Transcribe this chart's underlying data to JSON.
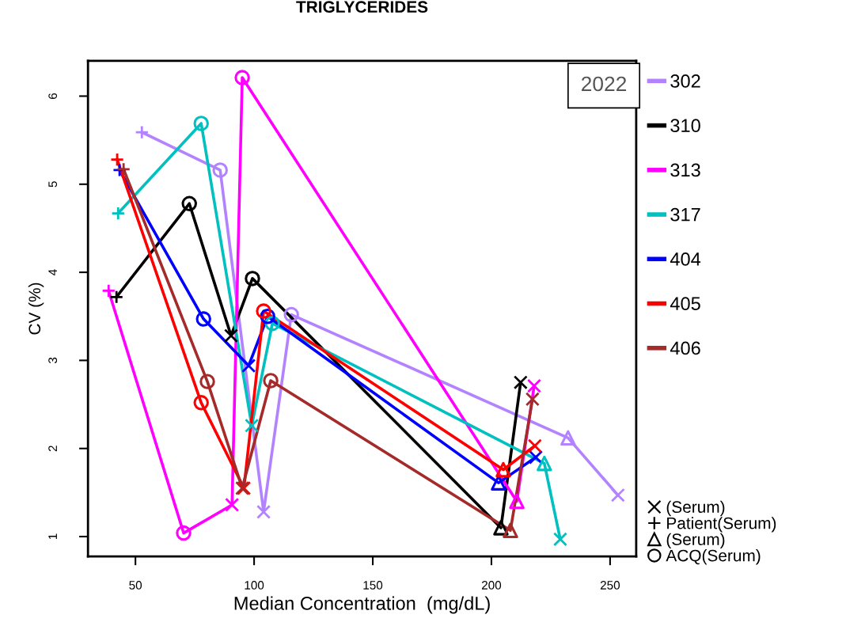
{
  "chart_data": {
    "type": "line",
    "title": "TRIGLYCERIDES",
    "xlabel": "Median Concentration  (mg/dL)",
    "ylabel": "CV (%)",
    "xlim": [
      30,
      261
    ],
    "xticks": [
      50,
      100,
      150,
      200,
      250
    ],
    "ylim": [
      0.775,
      6.4
    ],
    "yticks": [
      1,
      2,
      3,
      4,
      5,
      6
    ],
    "grid": false,
    "legend": "right",
    "marker": "none",
    "line_style": "solid",
    "annotations": [
      "2022"
    ],
    "series": [
      {
        "name": "302",
        "color": "#b383ff",
        "x": [
          52.7,
          85.7,
          104,
          115.7,
          232.3,
          253.3
        ],
        "values": [
          5.59,
          5.16,
          1.28,
          3.52,
          2.12,
          1.47
        ]
      },
      {
        "name": "310",
        "color": "#000000",
        "x": [
          42,
          72.7,
          90.3,
          99.3,
          204,
          212.3
        ],
        "values": [
          3.72,
          4.78,
          3.28,
          3.93,
          1.1,
          2.75
        ]
      },
      {
        "name": "313",
        "color": "#ff00ff",
        "x": [
          38.7,
          70.3,
          90.7,
          95,
          210.7,
          218
        ],
        "values": [
          3.79,
          1.04,
          1.36,
          6.21,
          1.4,
          2.71
        ]
      },
      {
        "name": "317",
        "color": "#00c0c0",
        "x": [
          42.7,
          77.7,
          99,
          107.7,
          222.3,
          229
        ],
        "values": [
          4.67,
          5.69,
          2.26,
          3.42,
          1.83,
          0.97
        ]
      },
      {
        "name": "404",
        "color": "#0000ff",
        "x": [
          43.3,
          78.7,
          97.7,
          105.7,
          203,
          218.7
        ],
        "values": [
          5.16,
          3.47,
          2.94,
          3.5,
          1.61,
          1.9
        ]
      },
      {
        "name": "405",
        "color": "#ff0000",
        "x": [
          42.3,
          77.7,
          95.7,
          104,
          205,
          218.3
        ],
        "values": [
          5.28,
          2.52,
          1.55,
          3.56,
          1.76,
          2.03
        ]
      },
      {
        "name": "406",
        "color": "#a52a2a",
        "x": [
          45,
          80.3,
          95,
          107,
          208,
          217.3
        ],
        "values": [
          5.17,
          2.76,
          1.55,
          2.77,
          1.07,
          2.56
        ]
      },
      {
        "name": "(Serum)",
        "type": "scatter",
        "marker": "x",
        "color": "#000000",
        "x": [
          104,
          253.3,
          90.3,
          212.3,
          90.7,
          218,
          99,
          229,
          97.7,
          218.7,
          95.7,
          218.3,
          95,
          217.3
        ],
        "values": [
          1.28,
          1.47,
          3.28,
          2.75,
          1.36,
          2.71,
          2.26,
          0.97,
          2.94,
          1.9,
          1.55,
          2.03,
          1.55,
          2.56
        ],
        "colors": [
          "#b383ff",
          "#b383ff",
          "#000000",
          "#000000",
          "#ff00ff",
          "#ff00ff",
          "#00c0c0",
          "#00c0c0",
          "#0000ff",
          "#0000ff",
          "#ff0000",
          "#ff0000",
          "#a52a2a",
          "#a52a2a"
        ]
      },
      {
        "name": "Patient(Serum)",
        "type": "scatter",
        "marker": "plus",
        "color": "#000000",
        "x": [
          52.7,
          42,
          38.7,
          42.7,
          43.3,
          42.3,
          45
        ],
        "values": [
          5.59,
          3.72,
          3.79,
          4.67,
          5.16,
          5.28,
          5.17
        ],
        "colors": [
          "#b383ff",
          "#000000",
          "#ff00ff",
          "#00c0c0",
          "#0000ff",
          "#ff0000",
          "#a52a2a"
        ]
      },
      {
        "name": "(Serum)",
        "type": "scatter",
        "marker": "triangle",
        "color": "#000000",
        "x": [
          232.3,
          204,
          210.7,
          222.3,
          203,
          205,
          208
        ],
        "values": [
          2.12,
          1.1,
          1.4,
          1.83,
          1.61,
          1.76,
          1.07
        ],
        "colors": [
          "#b383ff",
          "#000000",
          "#ff00ff",
          "#00c0c0",
          "#0000ff",
          "#ff0000",
          "#a52a2a"
        ]
      },
      {
        "name": "ACQ(Serum)",
        "type": "scatter",
        "marker": "circle",
        "color": "#000000",
        "x": [
          85.7,
          115.7,
          72.7,
          99.3,
          70.3,
          95,
          77.7,
          107.7,
          78.7,
          105.7,
          77.7,
          104,
          80.3,
          107
        ],
        "values": [
          5.16,
          3.52,
          4.78,
          3.93,
          1.04,
          6.21,
          5.69,
          3.42,
          3.47,
          3.5,
          2.52,
          3.56,
          2.76,
          2.77
        ],
        "colors": [
          "#b383ff",
          "#b383ff",
          "#000000",
          "#000000",
          "#ff00ff",
          "#ff00ff",
          "#00c0c0",
          "#00c0c0",
          "#0000ff",
          "#0000ff",
          "#ff0000",
          "#ff0000",
          "#a52a2a",
          "#a52a2a"
        ]
      }
    ]
  }
}
